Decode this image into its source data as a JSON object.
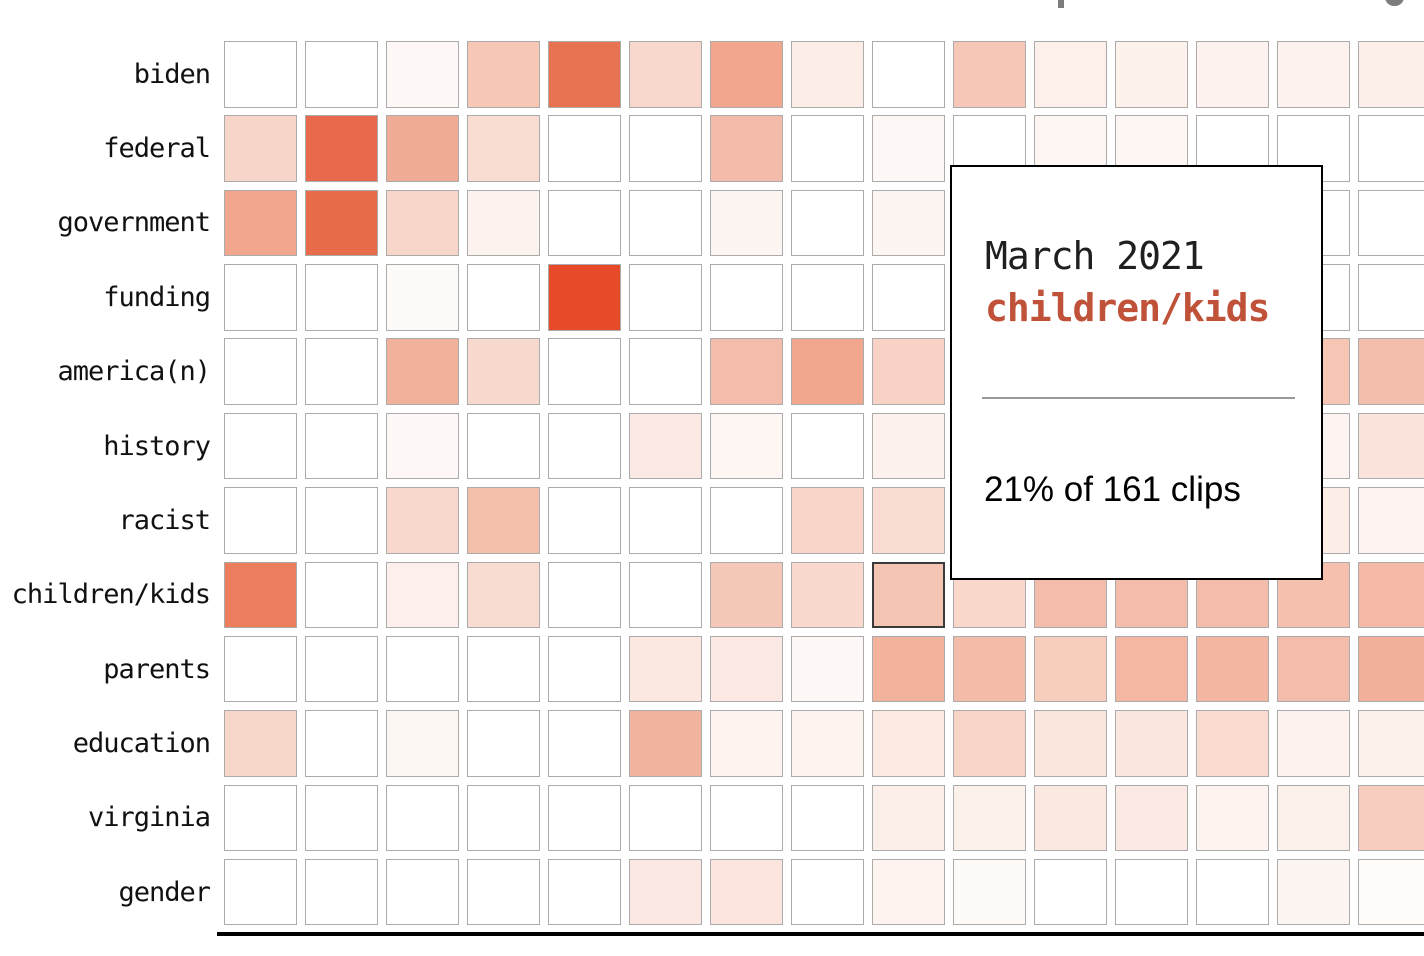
{
  "page": {
    "background": "#ffffff",
    "clipped_title_fragments": [
      "p-descender",
      "g-descender"
    ]
  },
  "chart_data": {
    "type": "heatmap",
    "title": "",
    "rows": [
      "biden",
      "federal",
      "government",
      "funding",
      "america(n)",
      "history",
      "racist",
      "children/kids",
      "parents",
      "education",
      "virginia",
      "gender"
    ],
    "columns_visible_count": 15,
    "column_labels_visible": false,
    "legend_visible": false,
    "cell_colors": [
      [
        "#ffffff",
        "#ffffff",
        "#fdf8f5",
        "#f6c7b5",
        "#e87353",
        "#f8d8cc",
        "#f1a68d",
        "#fceee7",
        "#ffffff",
        "#f6c7b6",
        "#fdf0ea",
        "#fdf1ec",
        "#fdf2ed",
        "#fdf2ee",
        "#fcefe9"
      ],
      [
        "#f8d5c9",
        "#e8694b",
        "#f0ab94",
        "#f9dcd2",
        "#ffffff",
        "#ffffff",
        "#f4bbaa",
        "#ffffff",
        "#fdf7f5",
        "#ffffff",
        "#fdf6f3",
        "#fdf6f3",
        "#ffffff",
        "#ffffff",
        "#ffffff"
      ],
      [
        "#f2a68e",
        "#e86c49",
        "#f8d7ca",
        "#fdf3ee",
        "#ffffff",
        "#ffffff",
        "#fdf5f1",
        "#ffffff",
        "#fdf5f2",
        "#ffffff",
        "#ffffff",
        "#ffffff",
        "#ffffff",
        "#ffffff",
        "#ffffff"
      ],
      [
        "#ffffff",
        "#ffffff",
        "#fdfaf7",
        "#ffffff",
        "#e64a28",
        "#ffffff",
        "#ffffff",
        "#ffffff",
        "#ffffff",
        "#ffffff",
        "#ffffff",
        "#ffffff",
        "#ffffff",
        "#ffffff",
        "#ffffff"
      ],
      [
        "#ffffff",
        "#ffffff",
        "#f2b19a",
        "#f8d9cd",
        "#ffffff",
        "#ffffff",
        "#f4bcab",
        "#f0a78e",
        "#f8d3c5",
        "#ffffff",
        "#ffffff",
        "#ffffff",
        "#ffffff",
        "#f6c5b3",
        "#f4beac"
      ],
      [
        "#ffffff",
        "#ffffff",
        "#fdf8f6",
        "#ffffff",
        "#ffffff",
        "#fbe9e4",
        "#fdf6f2",
        "#ffffff",
        "#fdf1ed",
        "#ffffff",
        "#ffffff",
        "#ffffff",
        "#ffffff",
        "#fdf4f1",
        "#fae3da"
      ],
      [
        "#ffffff",
        "#ffffff",
        "#f8d8cc",
        "#f4c0ac",
        "#ffffff",
        "#ffffff",
        "#ffffff",
        "#f8d5c8",
        "#f9dcd2",
        "#ffffff",
        "#ffffff",
        "#ffffff",
        "#ffffff",
        "#fceee7",
        "#fdf4f1"
      ],
      [
        "#ec7e5e",
        "#ffffff",
        "#fdf0ec",
        "#f9dcd1",
        "#ffffff",
        "#ffffff",
        "#f5c7b6",
        "#f9d9cd",
        "#f4c5b3",
        "#f9d7ca",
        "#f4bcaa",
        "#f4bdab",
        "#f4bdab",
        "#f5c1ae",
        "#f4baa7"
      ],
      [
        "#ffffff",
        "#ffffff",
        "#ffffff",
        "#ffffff",
        "#ffffff",
        "#fbe8e1",
        "#fce9e3",
        "#fdf7f5",
        "#f2b29c",
        "#f4bba8",
        "#f7cdbc",
        "#f3b7a3",
        "#f3b6a2",
        "#f4bcaa",
        "#f2b09a"
      ],
      [
        "#f8d7cb",
        "#ffffff",
        "#fdf7f4",
        "#ffffff",
        "#ffffff",
        "#f2b49e",
        "#fdf4f0",
        "#fdf3ef",
        "#fcebe3",
        "#f8d4c6",
        "#fbe6dd",
        "#fbe7df",
        "#f9dbd0",
        "#fdf2ee",
        "#fcf0ea"
      ],
      [
        "#ffffff",
        "#ffffff",
        "#ffffff",
        "#ffffff",
        "#ffffff",
        "#ffffff",
        "#ffffff",
        "#ffffff",
        "#fcefe9",
        "#fcf0ea",
        "#fbe9e1",
        "#fbeae3",
        "#fdf4f0",
        "#fcf0eb",
        "#f7cdbf"
      ],
      [
        "#ffffff",
        "#ffffff",
        "#ffffff",
        "#ffffff",
        "#ffffff",
        "#fbe8e2",
        "#fbe5de",
        "#ffffff",
        "#fdf4f0",
        "#fefaf8",
        "#ffffff",
        "#ffffff",
        "#ffffff",
        "#fdf5f2",
        "#fefbf9"
      ]
    ],
    "hovered_cell": {
      "row": "children/kids",
      "row_index": 7,
      "col_index": 8,
      "fill": "#f4c5b3",
      "border_color": "#3a3a3a"
    },
    "colors": {
      "scale_min": "#ffffff",
      "scale_max": "#e64a28",
      "cell_border": "#ababab",
      "axis_line": "#000000",
      "label_text": "#111111"
    }
  },
  "tooltip": {
    "line1": "March 2021",
    "line2": "children/kids",
    "line2_color": "#bf5238",
    "body": "21% of 161 clips",
    "background": "#ffffff",
    "border_color": "#000000",
    "divider_color": "#999999"
  }
}
